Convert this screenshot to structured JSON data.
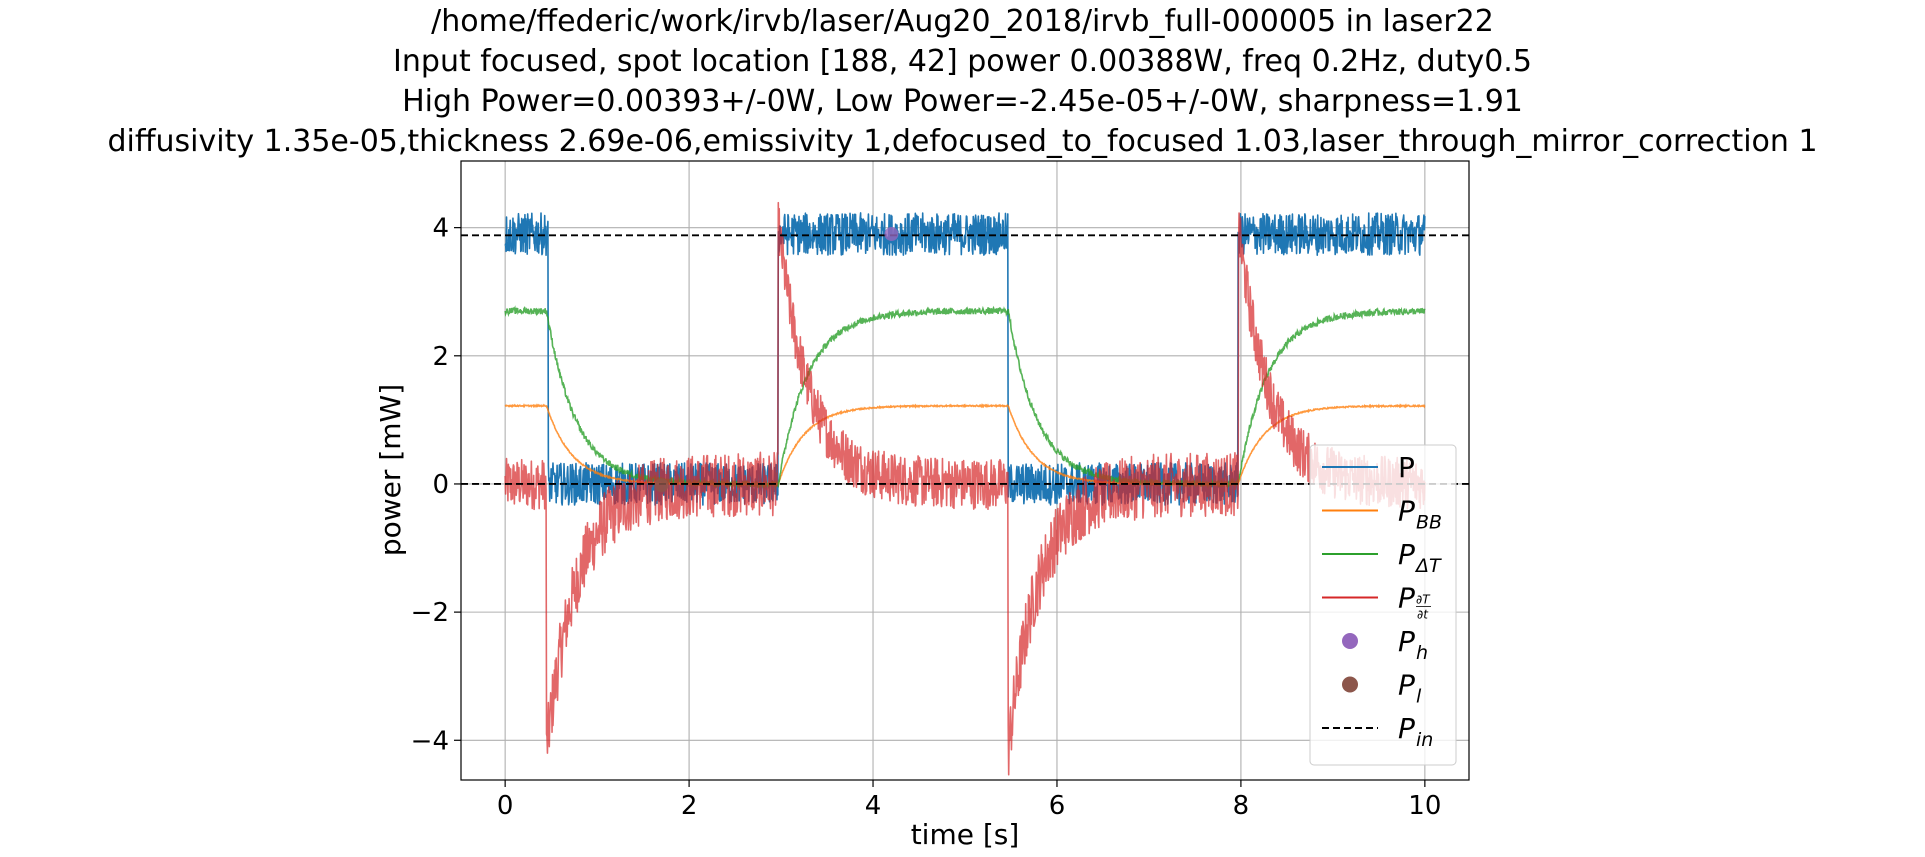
{
  "chart_data": {
    "type": "line",
    "title": [
      "/home/ffederic/work/irvb/laser/Aug20_2018/irvb_full-000005 in laser22",
      "Input focused, spot location [188, 42] power 0.00388W, freq 0.2Hz, duty0.5",
      "High Power=0.00393+/-0W, Low Power=-2.45e-05+/-0W, sharpness=1.91",
      "diffusivity 1.35e-05,thickness 2.69e-06,emissivity 1,defocused_to_focused 1.03,laser_through_mirror_correction 1"
    ],
    "xlabel": "time [s]",
    "ylabel": "power [mW]",
    "xlim": [
      -0.48,
      10.48
    ],
    "ylim": [
      -4.62,
      5.04
    ],
    "xticks": [
      0,
      2,
      4,
      6,
      8,
      10
    ],
    "yticks": [
      -4,
      -2,
      0,
      2,
      4
    ],
    "xtick_labels": [
      "0",
      "2",
      "4",
      "6",
      "8",
      "10"
    ],
    "ytick_labels": [
      "−4",
      "−2",
      "0",
      "2",
      "4"
    ],
    "grid": true,
    "legend_position": "lower right",
    "laser": {
      "period_s": 5.0,
      "on_start_s": 2.97,
      "on_end_s": 5.47,
      "initial_on_until_s": 0.45,
      "high_mW": 3.9,
      "low_mW": 0.0
    },
    "series": [
      {
        "name": "P",
        "legend_label": "P",
        "color": "#1f77b4",
        "description_values": {
          "high_mW": 3.9,
          "low_mW": 0.0,
          "noise_mW": 0.55
        }
      },
      {
        "name": "P_BB",
        "legend_label": "P",
        "legend_sub": "BB",
        "color": "#ff7f0e",
        "description_values": {
          "high_mW": 1.22,
          "low_mW": 0.0,
          "tau_s": 0.28
        }
      },
      {
        "name": "P_ΔT",
        "legend_label": "P",
        "legend_sub": "ΔT",
        "color": "#2ca02c",
        "description_values": {
          "high_mW": 2.7,
          "low_mW": 0.0,
          "tau_s": 0.32
        }
      },
      {
        "name": "P_∂T/∂t",
        "legend_label": "P",
        "legend_frac": [
          "∂T",
          "∂t"
        ],
        "color": "#d62728",
        "description_values": {
          "peak_mW": 4.05,
          "trough_mW": -4.15,
          "tau_s": 0.33,
          "noise_mW": 0.5
        }
      },
      {
        "name": "P_h",
        "legend_label": "P",
        "legend_sub": "h",
        "color": "#9467bd",
        "marker": "circle",
        "points": [
          {
            "x": 4.2,
            "y": 3.9
          }
        ]
      },
      {
        "name": "P_l",
        "legend_label": "P",
        "legend_sub": "l",
        "color": "#8c564b",
        "marker": "circle",
        "points": [
          {
            "x": 1.7,
            "y": -0.02
          }
        ]
      },
      {
        "name": "P_in",
        "legend_label": "P",
        "legend_sub": "in",
        "color": "#000000",
        "dashed": true,
        "levels_mW": [
          3.88,
          0.0
        ]
      }
    ]
  }
}
